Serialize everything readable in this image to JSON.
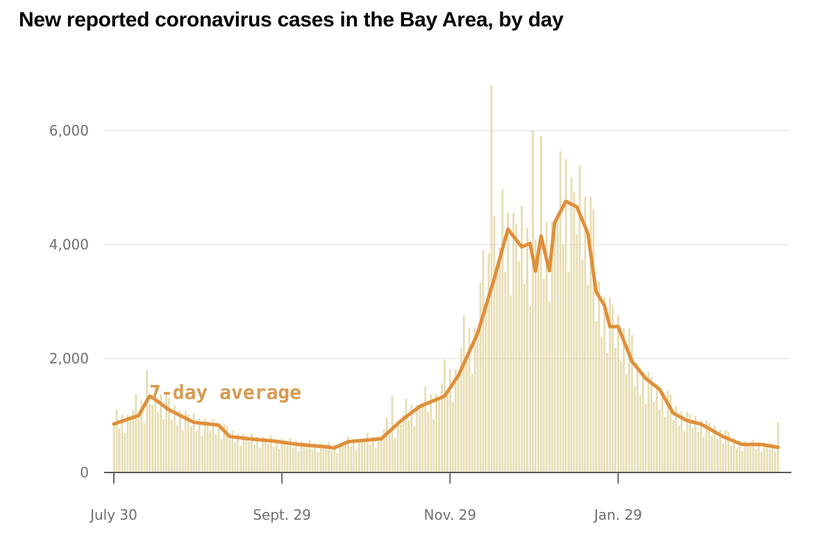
{
  "chart_data": {
    "type": "bar",
    "title": "New reported coronavirus cases in the Bay Area, by day",
    "xlabel": "",
    "ylabel": "",
    "ylim": [
      0,
      7000
    ],
    "grid": true,
    "y_ticks": [
      {
        "value": 0,
        "label": "0"
      },
      {
        "value": 2000,
        "label": "2,000"
      },
      {
        "value": 4000,
        "label": "4,000"
      },
      {
        "value": 6000,
        "label": "6,000"
      }
    ],
    "x_ticks": [
      {
        "day": 0,
        "label": "July 30"
      },
      {
        "day": 61,
        "label": "Sept. 29"
      },
      {
        "day": 122,
        "label": "Nov. 29"
      },
      {
        "day": 183,
        "label": "Jan. 29"
      }
    ],
    "daily_cases": [
      874,
      1104,
      782,
      1012,
      690,
      1012,
      966,
      1093,
      1380,
      978,
      1265,
      863,
      1800,
      1208,
      1188,
      1500,
      1063,
      1375,
      938,
      1375,
      1313,
      931,
      1176,
      833,
      1078,
      735,
      1078,
      1029,
      817,
      1032,
      731,
      946,
      645,
      946,
      903,
      741,
      936,
      663,
      858,
      585,
      858,
      819,
      589,
      744,
      527,
      682,
      465,
      682,
      651,
      542,
      684,
      485,
      627,
      428,
      627,
      599,
      513,
      648,
      459,
      594,
      405,
      594,
      567,
      475,
      600,
      425,
      550,
      375,
      550,
      525,
      447,
      564,
      400,
      517,
      353,
      517,
      494,
      428,
      540,
      383,
      495,
      338,
      495,
      473,
      504,
      636,
      451,
      583,
      398,
      583,
      557,
      551,
      696,
      493,
      638,
      435,
      638,
      609,
      760,
      960,
      680,
      1350,
      600,
      880,
      840,
      1026,
      1296,
      918,
      1188,
      810,
      1188,
      1134,
      1188,
      1500,
      1063,
      1375,
      938,
      1375,
      1313,
      1568,
      1980,
      1403,
      1815,
      1238,
      1815,
      1733,
      2185,
      2760,
      1955,
      2530,
      1725,
      2530,
      2415,
      3325,
      3900,
      2975,
      3850,
      6800,
      4500,
      3675,
      3943,
      4980,
      3528,
      4565,
      3113,
      4565,
      4358,
      3705,
      4680,
      3315,
      4290,
      2925,
      6000,
      4095,
      3800,
      5900,
      3400,
      4400,
      3000,
      4400,
      4200,
      4465,
      5640,
      3995,
      5500,
      3525,
      5170,
      4935,
      4180,
      5400,
      3740,
      4840,
      3300,
      4840,
      4620,
      2660,
      3360,
      2380,
      3080,
      2100,
      3080,
      2940,
      2185,
      2760,
      1955,
      2530,
      1725,
      2530,
      2415,
      1520,
      1920,
      1360,
      1760,
      1200,
      1760,
      1680,
      1235,
      1560,
      1105,
      1430,
      975,
      1430,
      1365,
      922,
      1164,
      825,
      1067,
      728,
      1067,
      1019,
      789,
      996,
      706,
      913,
      623,
      913,
      872,
      646,
      816,
      578,
      748,
      510,
      748,
      714,
      475,
      600,
      425,
      550,
      375,
      550,
      525,
      456,
      576,
      408,
      528,
      360,
      528,
      504,
      409,
      516,
      366,
      880
    ],
    "series": [
      {
        "name": "7-day average",
        "points": [
          [
            0,
            850
          ],
          [
            9,
            1000
          ],
          [
            13,
            1340
          ],
          [
            15,
            1280
          ],
          [
            20,
            1100
          ],
          [
            29,
            880
          ],
          [
            38,
            830
          ],
          [
            42,
            630
          ],
          [
            49,
            590
          ],
          [
            58,
            550
          ],
          [
            67,
            490
          ],
          [
            77,
            450
          ],
          [
            80,
            430
          ],
          [
            85,
            540
          ],
          [
            97,
            590
          ],
          [
            104,
            900
          ],
          [
            111,
            1160
          ],
          [
            120,
            1340
          ],
          [
            125,
            1700
          ],
          [
            132,
            2440
          ],
          [
            138,
            3400
          ],
          [
            143,
            4270
          ],
          [
            148,
            3960
          ],
          [
            151,
            4020
          ],
          [
            153,
            3540
          ],
          [
            155,
            4150
          ],
          [
            158,
            3540
          ],
          [
            160,
            4390
          ],
          [
            164,
            4760
          ],
          [
            168,
            4660
          ],
          [
            172,
            4200
          ],
          [
            175,
            3170
          ],
          [
            178,
            2930
          ],
          [
            180,
            2560
          ],
          [
            183,
            2560
          ],
          [
            188,
            1950
          ],
          [
            193,
            1650
          ],
          [
            198,
            1460
          ],
          [
            203,
            1040
          ],
          [
            208,
            910
          ],
          [
            213,
            850
          ],
          [
            221,
            630
          ],
          [
            228,
            490
          ],
          [
            235,
            490
          ],
          [
            241,
            440
          ]
        ]
      }
    ],
    "annotation": "7-day average",
    "colors": {
      "bars": "#e7ddb3",
      "line": "#e08f3a",
      "annotation": "#d69b50",
      "grid": "#ececec",
      "axis": "#555555"
    }
  }
}
